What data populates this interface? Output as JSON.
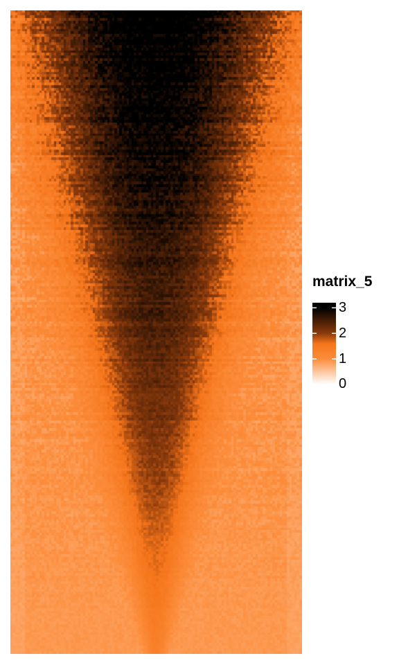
{
  "chart_data": {
    "type": "heatmap",
    "title": "",
    "xlabel": "",
    "ylabel": "",
    "rows": 240,
    "columns": 120,
    "value_range": [
      0,
      3.2
    ],
    "pattern": "enriched signal centered in middle columns, decreasing from top rows to bottom rows (V-shaped high-value region)",
    "color_scale": {
      "stops": [
        {
          "value": 0,
          "color": "#ffffff"
        },
        {
          "value": 1,
          "color": "#fc8d3c"
        },
        {
          "value": 1.6,
          "color": "#f5751a"
        },
        {
          "value": 2,
          "color": "#8a3a0c"
        },
        {
          "value": 3,
          "color": "#000000"
        }
      ]
    },
    "legend": {
      "title": "matrix_5",
      "ticks": [
        {
          "value": 3,
          "label": "3"
        },
        {
          "value": 2,
          "label": "2"
        },
        {
          "value": 1,
          "label": "1"
        },
        {
          "value": 0,
          "label": "0"
        }
      ],
      "placement": "right"
    }
  }
}
